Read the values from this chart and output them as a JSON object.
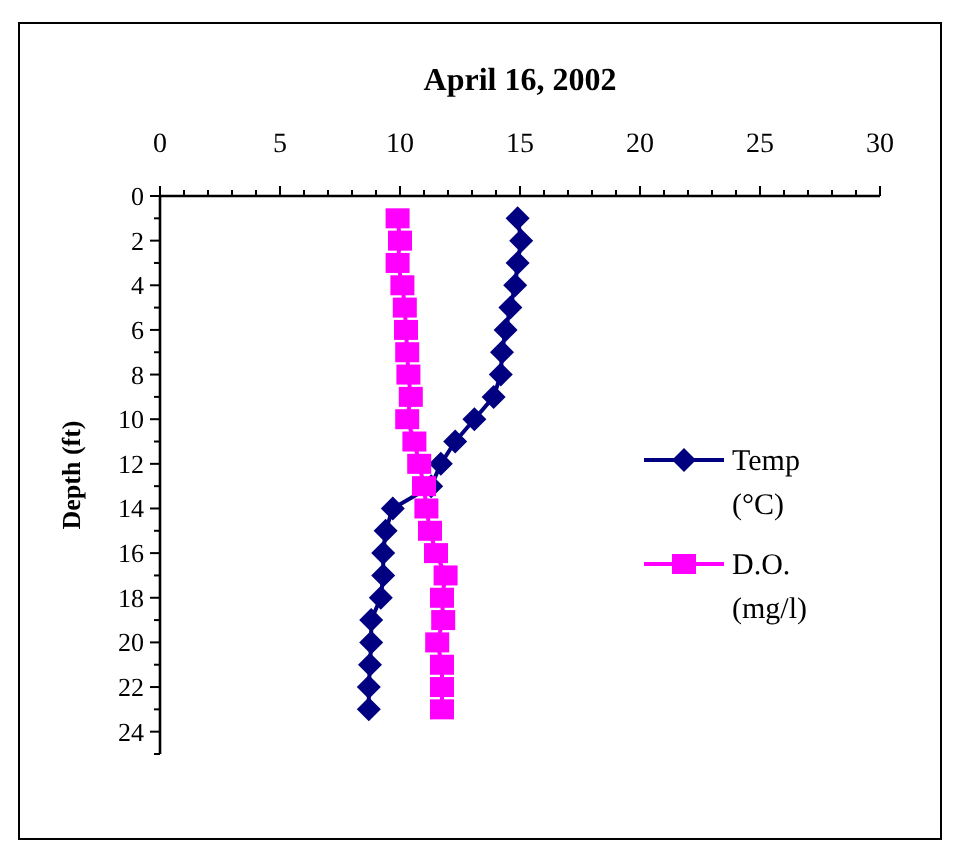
{
  "chart_data": {
    "type": "line",
    "title": "April 16, 2002",
    "ylabel": "Depth (ft)",
    "xlim": [
      0,
      30
    ],
    "xticks": [
      0,
      {
        "value": 1,
        "label": null
      },
      {
        "value": 2,
        "label": null
      },
      {
        "value": 3,
        "label": null
      },
      {
        "value": 4,
        "label": null
      },
      5,
      {
        "value": 6,
        "label": null
      },
      {
        "value": 7,
        "label": null
      },
      {
        "value": 8,
        "label": null
      },
      {
        "value": 9,
        "label": null
      },
      10,
      {
        "value": 11,
        "label": null
      },
      {
        "value": 12,
        "label": null
      },
      {
        "value": 13,
        "label": null
      },
      {
        "value": 14,
        "label": null
      },
      15,
      {
        "value": 16,
        "label": null
      },
      {
        "value": 17,
        "label": null
      },
      {
        "value": 18,
        "label": null
      },
      {
        "value": 19,
        "label": null
      },
      20,
      {
        "value": 21,
        "label": null
      },
      {
        "value": 22,
        "label": null
      },
      {
        "value": 23,
        "label": null
      },
      {
        "value": 24,
        "label": null
      },
      25,
      {
        "value": 26,
        "label": null
      },
      {
        "value": 27,
        "label": null
      },
      {
        "value": 28,
        "label": null
      },
      {
        "value": 29,
        "label": null
      },
      30
    ],
    "ylim": [
      25,
      0
    ],
    "yticks": [
      0,
      {
        "value": 1,
        "label": null
      },
      2,
      {
        "value": 3,
        "label": null
      },
      4,
      {
        "value": 5,
        "label": null
      },
      6,
      {
        "value": 7,
        "label": null
      },
      8,
      {
        "value": 9,
        "label": null
      },
      10,
      {
        "value": 11,
        "label": null
      },
      12,
      {
        "value": 13,
        "label": null
      },
      14,
      {
        "value": 15,
        "label": null
      },
      16,
      {
        "value": 17,
        "label": null
      },
      18,
      {
        "value": 19,
        "label": null
      },
      20,
      {
        "value": 21,
        "label": null
      },
      22,
      {
        "value": 23,
        "label": null
      },
      24,
      {
        "value": 25,
        "label": null
      }
    ],
    "legend": "right",
    "line_style": "solid",
    "series": [
      {
        "name": "Temp (°C)",
        "color": "#000080",
        "marker": "diamond",
        "x": [
          14.9,
          15.05,
          14.9,
          14.8,
          14.6,
          14.4,
          14.25,
          14.2,
          13.9,
          13.1,
          12.3,
          11.7,
          11.3,
          9.7,
          9.4,
          9.3,
          9.3,
          9.2,
          8.8,
          8.8,
          8.75,
          8.7,
          8.7
        ],
        "values": [
          1,
          2,
          3,
          4,
          5,
          6,
          7,
          8,
          9,
          10,
          11,
          12,
          13,
          14,
          15,
          16,
          17,
          18,
          19,
          20,
          21,
          22,
          23
        ]
      },
      {
        "name": "D.O. (mg/l)",
        "color": "#ff00ff",
        "marker": "square",
        "x": [
          9.9,
          10.0,
          9.9,
          10.1,
          10.2,
          10.25,
          10.3,
          10.35,
          10.45,
          10.3,
          10.6,
          10.8,
          11.0,
          11.1,
          11.25,
          11.5,
          11.9,
          11.75,
          11.8,
          11.55,
          11.75,
          11.75,
          11.75
        ],
        "values": [
          1,
          2,
          3,
          4,
          5,
          6,
          7,
          8,
          9,
          10,
          11,
          12,
          13,
          14,
          15,
          16,
          17,
          18,
          19,
          20,
          21,
          22,
          23
        ]
      }
    ]
  }
}
